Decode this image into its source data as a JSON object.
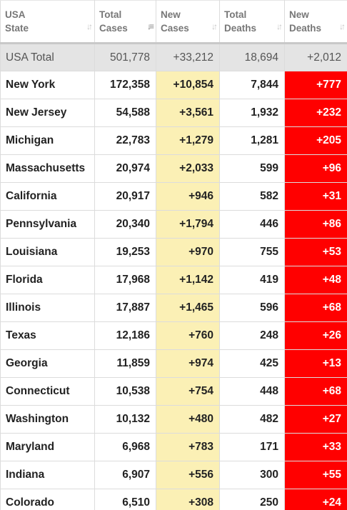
{
  "colors": {
    "header_text": "#777777",
    "total_row_bg": "#e4e4e4",
    "new_cases_bg": "#fbf0b5",
    "new_deaths_bg": "#ff0000",
    "new_deaths_text": "#ffffff"
  },
  "header": {
    "state": [
      "USA",
      "State"
    ],
    "total_cases": [
      "Total",
      "Cases"
    ],
    "new_cases": [
      "New",
      "Cases"
    ],
    "total_deaths": [
      "Total",
      "Deaths"
    ],
    "new_deaths": [
      "New",
      "Deaths"
    ],
    "sort_icons": {
      "state": "sort-both-icon",
      "total_cases": "sort-descending-icon",
      "new_cases": "sort-both-icon",
      "total_deaths": "sort-both-icon",
      "new_deaths": "sort-both-icon"
    },
    "sort_glyphs": {
      "both": "↓↑",
      "descending": "↓≡"
    }
  },
  "total_row": {
    "state": "USA Total",
    "total_cases": "501,778",
    "new_cases": "+33,212",
    "total_deaths": "18,694",
    "new_deaths": "+2,012"
  },
  "rows": [
    {
      "state": "New York",
      "total_cases": "172,358",
      "new_cases": "+10,854",
      "total_deaths": "7,844",
      "new_deaths": "+777"
    },
    {
      "state": "New Jersey",
      "total_cases": "54,588",
      "new_cases": "+3,561",
      "total_deaths": "1,932",
      "new_deaths": "+232"
    },
    {
      "state": "Michigan",
      "total_cases": "22,783",
      "new_cases": "+1,279",
      "total_deaths": "1,281",
      "new_deaths": "+205"
    },
    {
      "state": "Massachusetts",
      "total_cases": "20,974",
      "new_cases": "+2,033",
      "total_deaths": "599",
      "new_deaths": "+96"
    },
    {
      "state": "California",
      "total_cases": "20,917",
      "new_cases": "+946",
      "total_deaths": "582",
      "new_deaths": "+31"
    },
    {
      "state": "Pennsylvania",
      "total_cases": "20,340",
      "new_cases": "+1,794",
      "total_deaths": "446",
      "new_deaths": "+86"
    },
    {
      "state": "Louisiana",
      "total_cases": "19,253",
      "new_cases": "+970",
      "total_deaths": "755",
      "new_deaths": "+53"
    },
    {
      "state": "Florida",
      "total_cases": "17,968",
      "new_cases": "+1,142",
      "total_deaths": "419",
      "new_deaths": "+48"
    },
    {
      "state": "Illinois",
      "total_cases": "17,887",
      "new_cases": "+1,465",
      "total_deaths": "596",
      "new_deaths": "+68"
    },
    {
      "state": "Texas",
      "total_cases": "12,186",
      "new_cases": "+760",
      "total_deaths": "248",
      "new_deaths": "+26"
    },
    {
      "state": "Georgia",
      "total_cases": "11,859",
      "new_cases": "+974",
      "total_deaths": "425",
      "new_deaths": "+13"
    },
    {
      "state": "Connecticut",
      "total_cases": "10,538",
      "new_cases": "+754",
      "total_deaths": "448",
      "new_deaths": "+68"
    },
    {
      "state": "Washington",
      "total_cases": "10,132",
      "new_cases": "+480",
      "total_deaths": "482",
      "new_deaths": "+27"
    },
    {
      "state": "Maryland",
      "total_cases": "6,968",
      "new_cases": "+783",
      "total_deaths": "171",
      "new_deaths": "+33"
    },
    {
      "state": "Indiana",
      "total_cases": "6,907",
      "new_cases": "+556",
      "total_deaths": "300",
      "new_deaths": "+55"
    },
    {
      "state": "Colorado",
      "total_cases": "6,510",
      "new_cases": "+308",
      "total_deaths": "250",
      "new_deaths": "+24"
    }
  ]
}
